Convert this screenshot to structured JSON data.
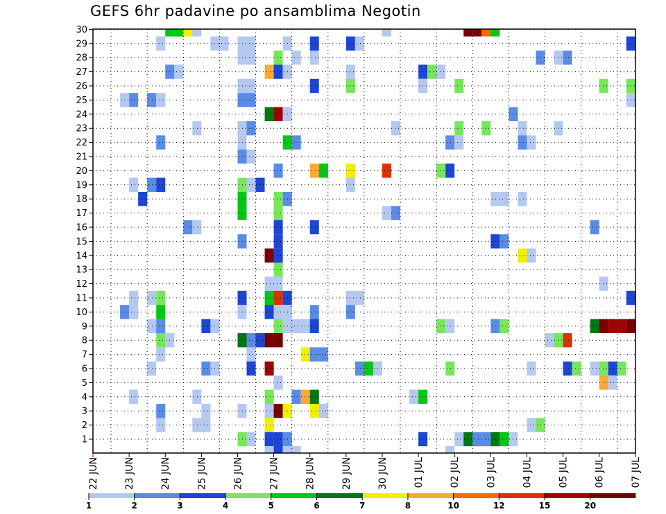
{
  "title": "GEFS 6hr padavine po ansamblima Negotin",
  "colors": {
    "c1": "#b4c8f0",
    "c2": "#5a8ce6",
    "c3": "#1e46d2",
    "c4": "#78e65a",
    "c5": "#00c814",
    "c6": "#007814",
    "c7": "#f0f000",
    "c8": "#faaa32",
    "c10": "#f06e00",
    "c12": "#dc3200",
    "c15": "#a00000",
    "c20": "#780000"
  },
  "chart_data": {
    "type": "heatmap",
    "title": "GEFS 6hr padavine po ansamblima Negotin",
    "y_ticks": [
      "1",
      "2",
      "3",
      "4",
      "5",
      "6",
      "7",
      "8",
      "9",
      "10",
      "11",
      "12",
      "13",
      "14",
      "15",
      "16",
      "17",
      "18",
      "19",
      "20",
      "21",
      "22",
      "23",
      "24",
      "25",
      "26",
      "27",
      "28",
      "29",
      "30"
    ],
    "x_ticks": [
      "22 JUN",
      "23 JUN",
      "24 JUN",
      "25 JUN",
      "26 JUN",
      "27 JUN",
      "28 JUN",
      "29 JUN",
      "30 JUN",
      "01 JUL",
      "02 JUL",
      "03 JUL",
      "04 JUL",
      "05 JUL",
      "06 JUL",
      "07 JUL"
    ],
    "grid": true,
    "legend": {
      "position": "bottom",
      "labels": [
        "1",
        "2",
        "3",
        "4",
        "5",
        "6",
        "7",
        "8",
        "10",
        "12",
        "15",
        "20"
      ],
      "colors": [
        "#b4c8f0",
        "#5a8ce6",
        "#1e46d2",
        "#78e65a",
        "#00c814",
        "#007814",
        "#f0f000",
        "#faaa32",
        "#f06e00",
        "#dc3200",
        "#a00000",
        "#780000"
      ]
    },
    "cells": [
      [
        8,
        30,
        5
      ],
      [
        9,
        30,
        5
      ],
      [
        10,
        30,
        7
      ],
      [
        11,
        30,
        1
      ],
      [
        32,
        30,
        1
      ],
      [
        41,
        30,
        20
      ],
      [
        42,
        30,
        20
      ],
      [
        43,
        30,
        10
      ],
      [
        44,
        30,
        5
      ],
      [
        7,
        29,
        1
      ],
      [
        13,
        29,
        1
      ],
      [
        14,
        29,
        1
      ],
      [
        16,
        29,
        1
      ],
      [
        17,
        29,
        1
      ],
      [
        21,
        29,
        1
      ],
      [
        24,
        29,
        3
      ],
      [
        28,
        29,
        3
      ],
      [
        29,
        29,
        1
      ],
      [
        59,
        29,
        3
      ],
      [
        16,
        28,
        1
      ],
      [
        17,
        28,
        1
      ],
      [
        20,
        28,
        4
      ],
      [
        22,
        28,
        1
      ],
      [
        24,
        28,
        1
      ],
      [
        49,
        28,
        2
      ],
      [
        51,
        28,
        1
      ],
      [
        52,
        28,
        2
      ],
      [
        8,
        27,
        2
      ],
      [
        9,
        27,
        1
      ],
      [
        19,
        27,
        8
      ],
      [
        20,
        27,
        3
      ],
      [
        21,
        27,
        1
      ],
      [
        28,
        27,
        1
      ],
      [
        36,
        27,
        3
      ],
      [
        37,
        27,
        4
      ],
      [
        38,
        27,
        1
      ],
      [
        16,
        26,
        1
      ],
      [
        17,
        26,
        1
      ],
      [
        24,
        26,
        3
      ],
      [
        28,
        26,
        4
      ],
      [
        36,
        26,
        1
      ],
      [
        40,
        26,
        4
      ],
      [
        56,
        26,
        4
      ],
      [
        59,
        26,
        4
      ],
      [
        3,
        25,
        1
      ],
      [
        4,
        25,
        2
      ],
      [
        6,
        25,
        2
      ],
      [
        7,
        25,
        1
      ],
      [
        16,
        25,
        2
      ],
      [
        17,
        25,
        2
      ],
      [
        59,
        25,
        1
      ],
      [
        19,
        24,
        6
      ],
      [
        20,
        24,
        15
      ],
      [
        21,
        24,
        1
      ],
      [
        46,
        24,
        2
      ],
      [
        11,
        23,
        1
      ],
      [
        16,
        23,
        1
      ],
      [
        17,
        23,
        2
      ],
      [
        33,
        23,
        1
      ],
      [
        40,
        23,
        4
      ],
      [
        43,
        23,
        4
      ],
      [
        47,
        23,
        1
      ],
      [
        51,
        23,
        1
      ],
      [
        7,
        22,
        2
      ],
      [
        16,
        22,
        1
      ],
      [
        21,
        22,
        5
      ],
      [
        22,
        22,
        2
      ],
      [
        39,
        22,
        2
      ],
      [
        40,
        22,
        1
      ],
      [
        47,
        22,
        2
      ],
      [
        48,
        22,
        1
      ],
      [
        16,
        21,
        2
      ],
      [
        17,
        21,
        1
      ],
      [
        20,
        20,
        2
      ],
      [
        24,
        20,
        8
      ],
      [
        25,
        20,
        5
      ],
      [
        28,
        20,
        7
      ],
      [
        32,
        20,
        12
      ],
      [
        38,
        20,
        4
      ],
      [
        39,
        20,
        3
      ],
      [
        4,
        19,
        1
      ],
      [
        6,
        19,
        2
      ],
      [
        7,
        19,
        3
      ],
      [
        16,
        19,
        4
      ],
      [
        17,
        19,
        1
      ],
      [
        18,
        19,
        3
      ],
      [
        28,
        19,
        1
      ],
      [
        5,
        18,
        3
      ],
      [
        16,
        18,
        5
      ],
      [
        20,
        18,
        4
      ],
      [
        21,
        18,
        2
      ],
      [
        44,
        18,
        1
      ],
      [
        45,
        18,
        1
      ],
      [
        47,
        18,
        1
      ],
      [
        16,
        17,
        5
      ],
      [
        20,
        17,
        4
      ],
      [
        32,
        17,
        1
      ],
      [
        33,
        17,
        2
      ],
      [
        10,
        16,
        2
      ],
      [
        11,
        16,
        1
      ],
      [
        20,
        16,
        3
      ],
      [
        24,
        16,
        3
      ],
      [
        55,
        16,
        2
      ],
      [
        16,
        15,
        2
      ],
      [
        20,
        15,
        3
      ],
      [
        44,
        15,
        3
      ],
      [
        45,
        15,
        2
      ],
      [
        19,
        14,
        20
      ],
      [
        20,
        14,
        3
      ],
      [
        47,
        14,
        7
      ],
      [
        48,
        14,
        1
      ],
      [
        20,
        13,
        4
      ],
      [
        19,
        12,
        1
      ],
      [
        20,
        12,
        1
      ],
      [
        56,
        12,
        1
      ],
      [
        4,
        11,
        1
      ],
      [
        6,
        11,
        1
      ],
      [
        7,
        11,
        4
      ],
      [
        16,
        11,
        3
      ],
      [
        19,
        11,
        5
      ],
      [
        20,
        11,
        12
      ],
      [
        21,
        11,
        3
      ],
      [
        28,
        11,
        1
      ],
      [
        29,
        11,
        1
      ],
      [
        59,
        11,
        3
      ],
      [
        3,
        10,
        2
      ],
      [
        4,
        10,
        1
      ],
      [
        7,
        10,
        5
      ],
      [
        16,
        10,
        1
      ],
      [
        19,
        10,
        3
      ],
      [
        20,
        10,
        1
      ],
      [
        21,
        10,
        1
      ],
      [
        24,
        10,
        2
      ],
      [
        28,
        10,
        2
      ],
      [
        6,
        9,
        1
      ],
      [
        7,
        9,
        2
      ],
      [
        12,
        9,
        3
      ],
      [
        13,
        9,
        1
      ],
      [
        20,
        9,
        4
      ],
      [
        21,
        9,
        1
      ],
      [
        22,
        9,
        1
      ],
      [
        23,
        9,
        1
      ],
      [
        24,
        9,
        3
      ],
      [
        38,
        9,
        4
      ],
      [
        39,
        9,
        1
      ],
      [
        44,
        9,
        2
      ],
      [
        45,
        9,
        4
      ],
      [
        55,
        9,
        6
      ],
      [
        56,
        9,
        20
      ],
      [
        57,
        9,
        15
      ],
      [
        58,
        9,
        15
      ],
      [
        59,
        9,
        20
      ],
      [
        7,
        8,
        4
      ],
      [
        8,
        8,
        1
      ],
      [
        16,
        8,
        6
      ],
      [
        17,
        8,
        2
      ],
      [
        18,
        8,
        3
      ],
      [
        19,
        8,
        20
      ],
      [
        20,
        8,
        20
      ],
      [
        50,
        8,
        1
      ],
      [
        51,
        8,
        4
      ],
      [
        52,
        8,
        12
      ],
      [
        7,
        7,
        1
      ],
      [
        17,
        7,
        1
      ],
      [
        23,
        7,
        7
      ],
      [
        24,
        7,
        2
      ],
      [
        25,
        7,
        2
      ],
      [
        6,
        6,
        1
      ],
      [
        12,
        6,
        2
      ],
      [
        13,
        6,
        1
      ],
      [
        17,
        6,
        3
      ],
      [
        19,
        6,
        15
      ],
      [
        29,
        6,
        2
      ],
      [
        30,
        6,
        5
      ],
      [
        31,
        6,
        1
      ],
      [
        39,
        6,
        4
      ],
      [
        48,
        6,
        1
      ],
      [
        52,
        6,
        3
      ],
      [
        53,
        6,
        4
      ],
      [
        55,
        6,
        1
      ],
      [
        56,
        6,
        4
      ],
      [
        57,
        6,
        3
      ],
      [
        58,
        6,
        4
      ],
      [
        20,
        5,
        1
      ],
      [
        56,
        5,
        8
      ],
      [
        57,
        5,
        1
      ],
      [
        4,
        4,
        1
      ],
      [
        11,
        4,
        1
      ],
      [
        19,
        4,
        4
      ],
      [
        22,
        4,
        2
      ],
      [
        23,
        4,
        8
      ],
      [
        24,
        4,
        6
      ],
      [
        35,
        4,
        1
      ],
      [
        36,
        4,
        5
      ],
      [
        7,
        3,
        2
      ],
      [
        12,
        3,
        1
      ],
      [
        16,
        3,
        1
      ],
      [
        19,
        3,
        1
      ],
      [
        20,
        3,
        20
      ],
      [
        21,
        3,
        7
      ],
      [
        24,
        3,
        7
      ],
      [
        25,
        3,
        1
      ],
      [
        7,
        2,
        1
      ],
      [
        11,
        2,
        1
      ],
      [
        12,
        2,
        1
      ],
      [
        19,
        2,
        7
      ],
      [
        48,
        2,
        1
      ],
      [
        49,
        2,
        4
      ],
      [
        16,
        1,
        4
      ],
      [
        17,
        1,
        1
      ],
      [
        19,
        1,
        3
      ],
      [
        20,
        1,
        3
      ],
      [
        21,
        1,
        2
      ],
      [
        36,
        1,
        3
      ],
      [
        40,
        1,
        1
      ],
      [
        41,
        1,
        6
      ],
      [
        42,
        1,
        2
      ],
      [
        43,
        1,
        2
      ],
      [
        44,
        1,
        6
      ],
      [
        45,
        1,
        5
      ],
      [
        46,
        1,
        1
      ],
      [
        19,
        0,
        1
      ],
      [
        20,
        0,
        3
      ],
      [
        21,
        0,
        1
      ],
      [
        22,
        0,
        1
      ],
      [
        39,
        0,
        1
      ]
    ]
  }
}
